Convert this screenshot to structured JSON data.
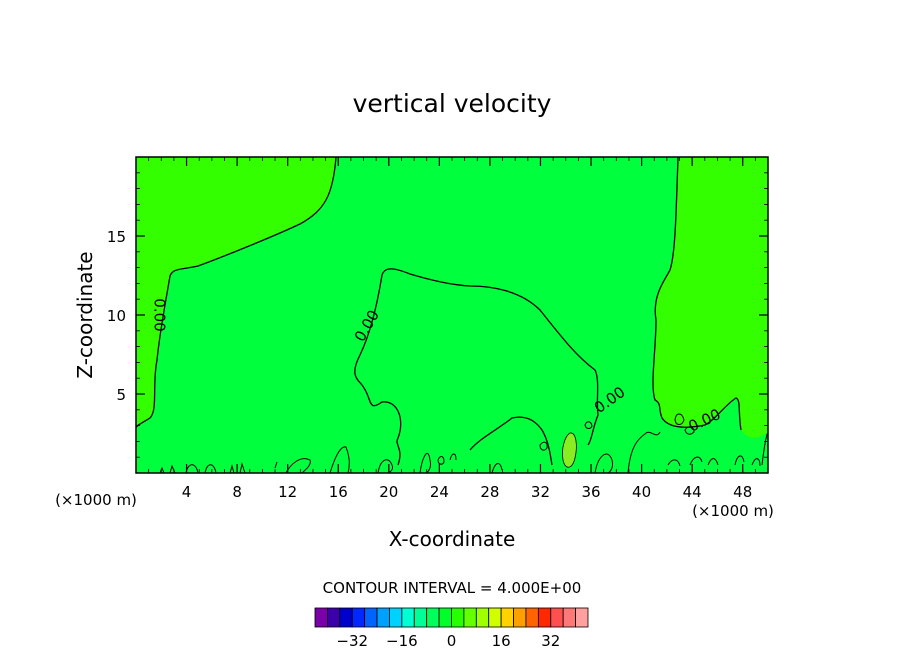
{
  "chart_data": {
    "type": "contour",
    "title": "vertical velocity",
    "xlabel": "X-coordinate",
    "ylabel": "Z-coordinate",
    "x_units": "(×1000 m)",
    "x_units_right": "(×1000 m)",
    "xlim": [
      0,
      50
    ],
    "ylim": [
      0,
      20
    ],
    "x_ticks": [
      4,
      8,
      12,
      16,
      20,
      24,
      28,
      32,
      36,
      40,
      44,
      48
    ],
    "y_ticks": [
      5,
      10,
      15
    ],
    "contour_labels": [
      {
        "text": "0.00",
        "x": 1.8,
        "y": 10.0,
        "angle": 90
      },
      {
        "text": "0.00",
        "x": 18.3,
        "y": 9.3,
        "angle": -60
      },
      {
        "text": "0.00",
        "x": 37.5,
        "y": 4.6,
        "angle": -35
      },
      {
        "text": "0.00",
        "x": 45.0,
        "y": 3.3,
        "angle": -25
      }
    ],
    "contour_interval_text": "CONTOUR INTERVAL = 4.000E+00",
    "colorbar": {
      "tick_labels": [
        "-32",
        "-16",
        "0",
        "16",
        "32"
      ],
      "tick_values": [
        -32,
        -16,
        0,
        16,
        32
      ],
      "colors": [
        "#7a00aa",
        "#3c00aa",
        "#0000cc",
        "#0028ff",
        "#0064ff",
        "#00a0ff",
        "#00d2ff",
        "#00ffd2",
        "#00ff96",
        "#00ff5a",
        "#00ff28",
        "#28ff00",
        "#64ff00",
        "#a0ff00",
        "#d2ff00",
        "#ffd200",
        "#ffa000",
        "#ff6400",
        "#ff2800",
        "#ff5050",
        "#ff7878",
        "#ffa0a0"
      ]
    },
    "colors": {
      "positive_field": "#33ff00",
      "neutral_field": "#00ff3c",
      "weak_updraft": "#88ee22"
    }
  }
}
